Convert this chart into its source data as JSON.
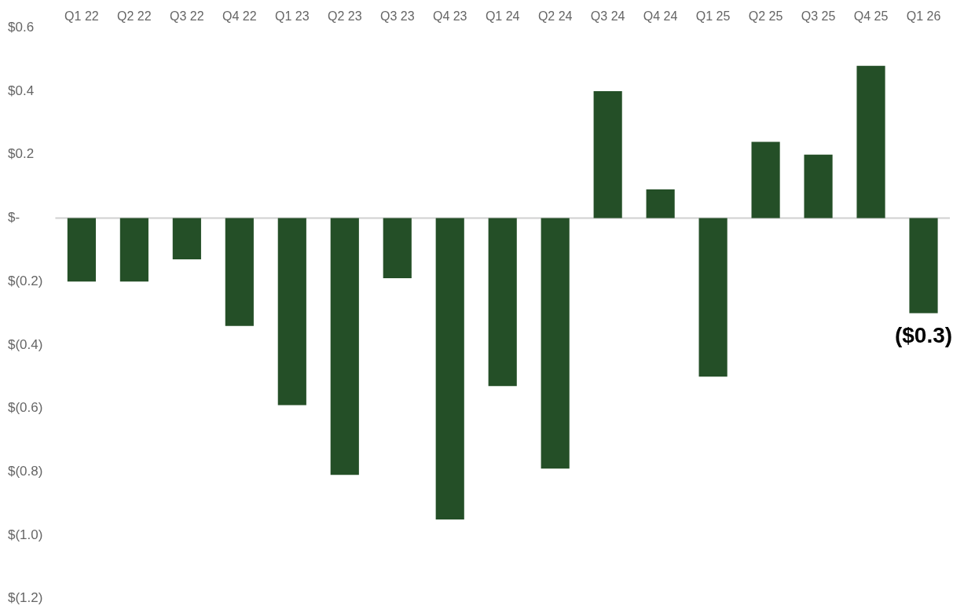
{
  "chart_data": {
    "type": "bar",
    "categories": [
      "Q1 22",
      "Q2 22",
      "Q3 22",
      "Q4 22",
      "Q1 23",
      "Q2 23",
      "Q3 23",
      "Q4 23",
      "Q1 24",
      "Q2 24",
      "Q3 24",
      "Q4 24",
      "Q1 25",
      "Q2 25",
      "Q3 25",
      "Q4 25",
      "Q1 26"
    ],
    "values": [
      -0.2,
      -0.2,
      -0.13,
      -0.34,
      -0.59,
      -0.81,
      -0.19,
      -0.95,
      -0.53,
      -0.79,
      0.4,
      0.09,
      -0.5,
      0.24,
      0.2,
      0.48,
      -0.3
    ],
    "value_labels": [
      null,
      null,
      null,
      null,
      null,
      null,
      null,
      null,
      null,
      null,
      null,
      null,
      null,
      null,
      null,
      null,
      "($0.3)"
    ],
    "color": "#244f27",
    "ylim": [
      -1.2,
      0.6
    ],
    "yticks": [
      {
        "value": 0.6,
        "label": "$0.6"
      },
      {
        "value": 0.4,
        "label": "$0.4"
      },
      {
        "value": 0.2,
        "label": "$0.2"
      },
      {
        "value": 0,
        "label": "$-"
      },
      {
        "value": -0.2,
        "label": "$(0.2)"
      },
      {
        "value": -0.4,
        "label": "$(0.4)"
      },
      {
        "value": -0.6,
        "label": "$(0.6)"
      },
      {
        "value": -0.8,
        "label": "$(0.8)"
      },
      {
        "value": -1.0,
        "label": "$(1.0)"
      },
      {
        "value": -1.2,
        "label": "$(1.2)"
      }
    ],
    "ref_lines": [
      {
        "axis": "y",
        "value": 0,
        "color": "#d0d0d0"
      }
    ],
    "grid": false,
    "legend": false
  }
}
